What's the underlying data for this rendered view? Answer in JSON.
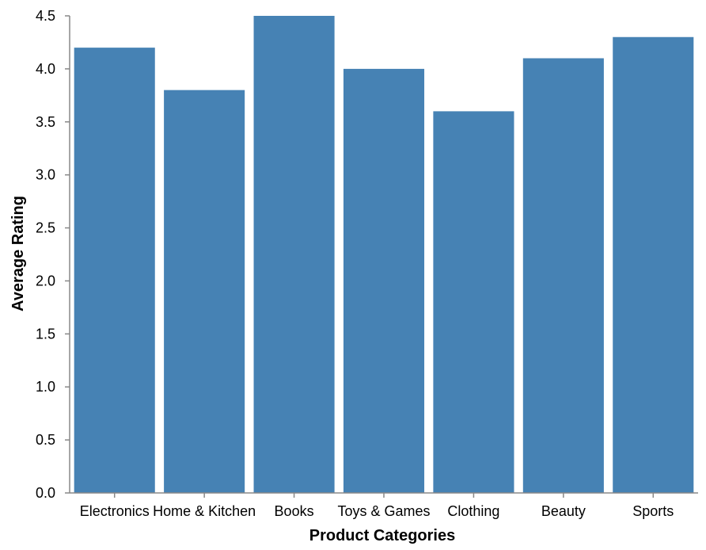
{
  "chart_data": {
    "type": "bar",
    "categories": [
      "Electronics",
      "Home & Kitchen",
      "Books",
      "Toys & Games",
      "Clothing",
      "Beauty",
      "Sports"
    ],
    "values": [
      4.2,
      3.8,
      4.5,
      4.0,
      3.6,
      4.1,
      4.3
    ],
    "xlabel": "Product Categories",
    "ylabel": "Average Rating",
    "ylim": [
      0,
      4.5
    ],
    "yticks": [
      "0.0",
      "0.5",
      "1.0",
      "1.5",
      "2.0",
      "2.5",
      "3.0",
      "3.5",
      "4.0",
      "4.5"
    ],
    "grid": false,
    "colors": {
      "bar": "#4682b4",
      "axis": "#888888",
      "text": "#000000"
    }
  }
}
